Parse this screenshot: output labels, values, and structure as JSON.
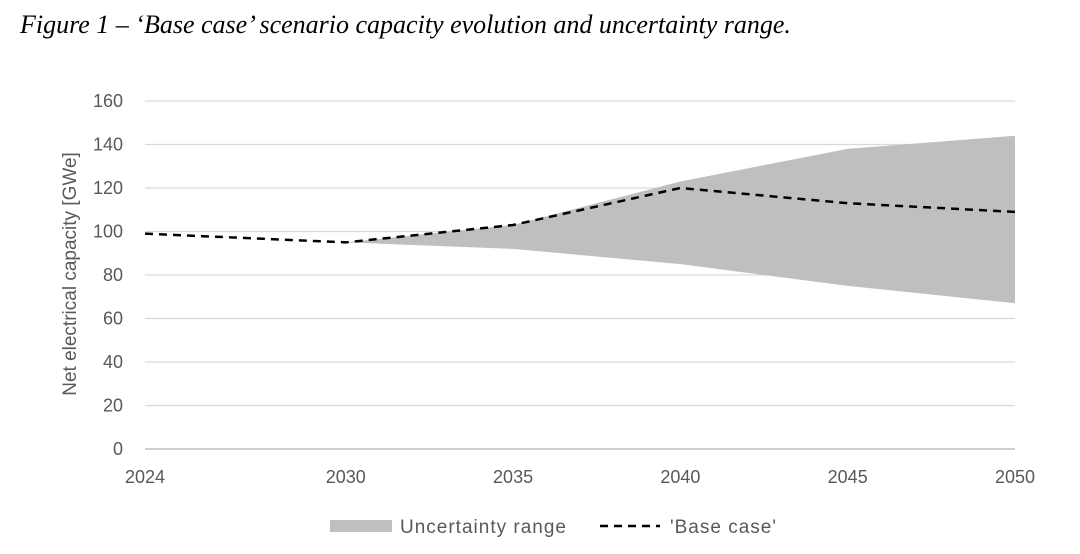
{
  "caption": "Figure 1 – ‘Base case’ scenario capacity evolution and uncertainty range.",
  "colors": {
    "band": "#bfbfbf",
    "line": "#000000",
    "grid": "#d9d9d9",
    "axis": "#bfbfbf",
    "text": "#595959"
  },
  "chart_data": {
    "type": "area",
    "title": "",
    "xlabel": "",
    "ylabel": "Net electrical capacity [GWe]",
    "x": [
      "2024",
      "2030",
      "2035",
      "2040",
      "2045",
      "2050"
    ],
    "x_positions": [
      2024,
      2030,
      2035,
      2040,
      2045,
      2050
    ],
    "ylim": [
      0,
      160
    ],
    "yticks": [
      0,
      20,
      40,
      60,
      80,
      100,
      120,
      140,
      160
    ],
    "grid": true,
    "legend_position": "bottom",
    "series": [
      {
        "name": "Uncertainty range",
        "kind": "band",
        "lower": [
          null,
          95,
          92,
          85,
          75,
          67
        ],
        "upper": [
          null,
          95,
          103,
          123,
          138,
          144
        ]
      },
      {
        "name": "'Base case'",
        "kind": "line",
        "style": "dashed",
        "values": [
          99,
          95,
          103,
          120,
          113,
          109
        ]
      }
    ]
  }
}
